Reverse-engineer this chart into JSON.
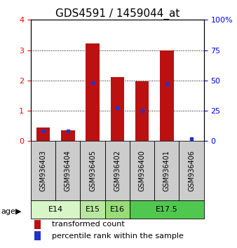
{
  "title": "GDS4591 / 1459044_at",
  "samples": [
    "GSM936403",
    "GSM936404",
    "GSM936405",
    "GSM936402",
    "GSM936400",
    "GSM936401",
    "GSM936406"
  ],
  "red_values": [
    0.45,
    0.35,
    3.22,
    2.12,
    1.98,
    3.0,
    0.0
  ],
  "blue_values_pct": [
    8,
    8,
    48,
    27,
    25,
    47,
    2
  ],
  "age_groups": [
    {
      "label": "E14",
      "start": 0,
      "end": 2,
      "color": "#d8f5c8"
    },
    {
      "label": "E15",
      "start": 2,
      "end": 3,
      "color": "#b8e8a0"
    },
    {
      "label": "E16",
      "start": 3,
      "end": 4,
      "color": "#98dc78"
    },
    {
      "label": "E17.5",
      "start": 4,
      "end": 7,
      "color": "#50c850"
    }
  ],
  "ylim_left": [
    0,
    4
  ],
  "ylim_right": [
    0,
    100
  ],
  "yticks_left": [
    0,
    1,
    2,
    3,
    4
  ],
  "yticks_right": [
    0,
    25,
    50,
    75,
    100
  ],
  "bar_color": "#bb1111",
  "dot_color": "#2233cc",
  "background_color": "#ffffff",
  "sample_box_color": "#cccccc",
  "legend_red": "transformed count",
  "legend_blue": "percentile rank within the sample",
  "age_label": "age",
  "title_fontsize": 11,
  "tick_fontsize": 8,
  "label_fontsize": 8,
  "sample_fontsize": 7
}
